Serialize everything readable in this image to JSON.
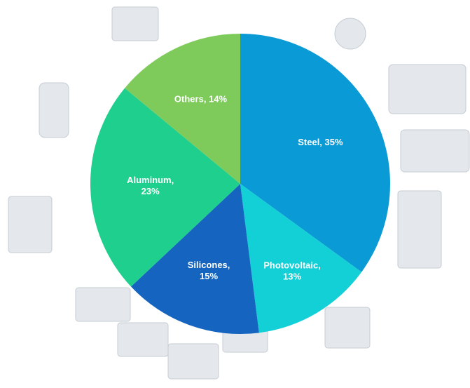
{
  "chart_data": {
    "type": "pie",
    "values": [
      35,
      13,
      15,
      23,
      14
    ],
    "value_labels": [
      "Steel, 35%",
      "Photovoltaic, 13%",
      "Silicones, 15%",
      "Aluminum, 23%",
      "Others, 14%"
    ],
    "colors": [
      "#0a9bd6",
      "#13cfd6",
      "#1565c0",
      "#1ecf8e",
      "#7ecb5b"
    ]
  }
}
